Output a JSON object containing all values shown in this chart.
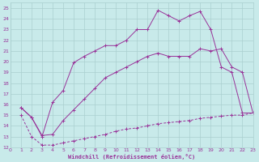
{
  "background_color": "#c8eaea",
  "grid_color": "#aacfcf",
  "line_color": "#993399",
  "xlabel": "Windchill (Refroidissement éolien,°C)",
  "xlim": [
    0,
    23
  ],
  "ylim": [
    12,
    25.5
  ],
  "xticks": [
    0,
    1,
    2,
    3,
    4,
    5,
    6,
    7,
    8,
    9,
    10,
    11,
    12,
    13,
    14,
    15,
    16,
    17,
    18,
    19,
    20,
    21,
    22,
    23
  ],
  "yticks": [
    12,
    13,
    14,
    15,
    16,
    17,
    18,
    19,
    20,
    21,
    22,
    23,
    24,
    25
  ],
  "line1_x": [
    1,
    2,
    3,
    4,
    5,
    6,
    7,
    8,
    9,
    10,
    11,
    12,
    13,
    14,
    15,
    16,
    17,
    18,
    19,
    20,
    21,
    22,
    23
  ],
  "line1_y": [
    15.7,
    14.8,
    13.0,
    16.2,
    17.3,
    19.9,
    20.5,
    21.0,
    21.5,
    21.5,
    22.0,
    23.0,
    23.0,
    24.8,
    24.3,
    23.8,
    24.3,
    24.7,
    23.0,
    19.5,
    19.0,
    15.2,
    15.2
  ],
  "line2_x": [
    1,
    2,
    3,
    4,
    5,
    6,
    7,
    8,
    9,
    10,
    11,
    12,
    13,
    14,
    15,
    16,
    17,
    18,
    19,
    20,
    21,
    22,
    23
  ],
  "line2_y": [
    15.7,
    14.8,
    13.1,
    13.2,
    14.5,
    15.5,
    16.5,
    17.5,
    18.5,
    19.0,
    19.5,
    20.0,
    20.5,
    20.8,
    20.5,
    20.5,
    20.5,
    21.2,
    21.0,
    21.2,
    19.5,
    19.0,
    15.2
  ],
  "line3_x": [
    1,
    2,
    3,
    4,
    5,
    6,
    7,
    8,
    9,
    10,
    11,
    12,
    13,
    14,
    15,
    16,
    17,
    18,
    19,
    20,
    21,
    22,
    23
  ],
  "line3_y": [
    15.0,
    13.0,
    12.2,
    12.2,
    12.4,
    12.6,
    12.8,
    13.0,
    13.2,
    13.5,
    13.7,
    13.8,
    14.0,
    14.2,
    14.3,
    14.4,
    14.5,
    14.7,
    14.8,
    14.9,
    15.0,
    15.0,
    15.2
  ]
}
